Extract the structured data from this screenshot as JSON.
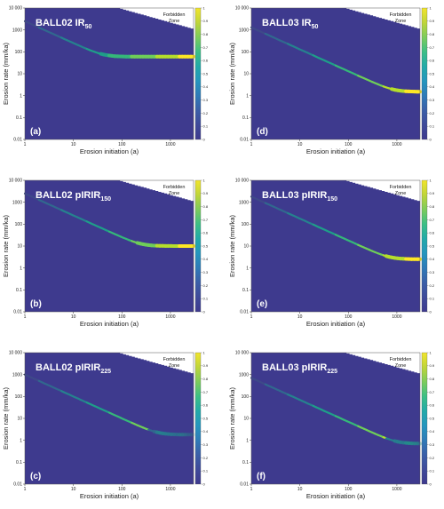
{
  "figure": {
    "xlabel": "Erosion initiation (a)",
    "ylabel": "Erosion rate (mm/ka)",
    "forbidden_zone": [
      "Forbidden",
      "Zone"
    ]
  },
  "colors": {
    "background": "#3e3a8e",
    "colormap": "viridis",
    "forbidden": "#ffffff"
  },
  "chart_data": [
    {
      "type": "heatmap",
      "panel": "(a)",
      "title_main": "BALL02 IR",
      "title_sub": "50",
      "x_scale": "log",
      "y_scale": "log",
      "xlim": [
        1,
        3000
      ],
      "ylim": [
        0.01,
        10000
      ],
      "x_ticks": [
        "1",
        "10",
        "100",
        "1000"
      ],
      "y_ticks": [
        "0.01",
        "0.1",
        "1",
        "10",
        "100",
        "1000",
        "10 000"
      ],
      "colorbar_ticks": [
        "0",
        "0.1",
        "0.2",
        "0.3",
        "0.4",
        "0.5",
        "0.6",
        "0.7",
        "0.8",
        "0.9",
        "1"
      ],
      "ridge": {
        "start_rate": 2500,
        "slope": -1,
        "plateau_rate": 60,
        "dashed_until": 25,
        "fade": false
      }
    },
    {
      "type": "heatmap",
      "panel": "(d)",
      "title_main": "BALL03 IR",
      "title_sub": "50",
      "x_scale": "log",
      "y_scale": "log",
      "xlim": [
        1,
        3000
      ],
      "ylim": [
        0.01,
        10000
      ],
      "x_ticks": [
        "1",
        "10",
        "100",
        "1000"
      ],
      "y_ticks": [
        "0.01",
        "0.1",
        "1",
        "10",
        "100",
        "1000",
        "10 000"
      ],
      "colorbar_ticks": [
        "0",
        "0.1",
        "0.2",
        "0.3",
        "0.4",
        "0.5",
        "0.6",
        "0.7",
        "0.8",
        "0.9",
        "1"
      ],
      "ridge": {
        "start_rate": 1300,
        "slope": -1,
        "plateau_rate": 1.5,
        "dashed_until": 1,
        "fade": false
      }
    },
    {
      "type": "heatmap",
      "panel": "(b)",
      "title_main": "BALL02 pIRIR",
      "title_sub": "150",
      "x_scale": "log",
      "y_scale": "log",
      "xlim": [
        1,
        3000
      ],
      "ylim": [
        0.01,
        10000
      ],
      "x_ticks": [
        "1",
        "10",
        "100",
        "1000"
      ],
      "y_ticks": [
        "0.01",
        "0.1",
        "1",
        "10",
        "100",
        "1000",
        "10 000"
      ],
      "colorbar_ticks": [
        "0",
        "0.1",
        "0.2",
        "0.3",
        "0.4",
        "0.5",
        "0.6",
        "0.7",
        "0.8",
        "0.9",
        "1"
      ],
      "ridge": {
        "start_rate": 2500,
        "slope": -1,
        "plateau_rate": 10,
        "dashed_until": 60,
        "fade": false
      }
    },
    {
      "type": "heatmap",
      "panel": "(e)",
      "title_main": "BALL03 pIRIR",
      "title_sub": "150",
      "x_scale": "log",
      "y_scale": "log",
      "xlim": [
        1,
        3000
      ],
      "ylim": [
        0.01,
        10000
      ],
      "x_ticks": [
        "1",
        "10",
        "100",
        "1000"
      ],
      "y_ticks": [
        "0.01",
        "0.1",
        "1",
        "10",
        "100",
        "1000",
        "10 000"
      ],
      "colorbar_ticks": [
        "0",
        "0.1",
        "0.2",
        "0.3",
        "0.4",
        "0.5",
        "0.6",
        "0.7",
        "0.8",
        "0.9",
        "1"
      ],
      "ridge": {
        "start_rate": 1800,
        "slope": -1,
        "plateau_rate": 2.5,
        "dashed_until": 40,
        "fade": false
      }
    },
    {
      "type": "heatmap",
      "panel": "(c)",
      "title_main": "BALL02 pIRIR",
      "title_sub": "225",
      "x_scale": "log",
      "y_scale": "log",
      "xlim": [
        1,
        3000
      ],
      "ylim": [
        0.01,
        10000
      ],
      "x_ticks": [
        "1",
        "10",
        "100",
        "1000"
      ],
      "y_ticks": [
        "0.01",
        "0.1",
        "1",
        "10",
        "100",
        "1000",
        "10 000"
      ],
      "colorbar_ticks": [
        "0",
        "0.1",
        "0.2",
        "0.3",
        "0.4",
        "0.5",
        "0.6",
        "0.7",
        "0.8",
        "0.9",
        "1"
      ],
      "ridge": {
        "start_rate": 1000,
        "slope": -1,
        "plateau_rate": 1.8,
        "dashed_until": 80,
        "fade": true
      }
    },
    {
      "type": "heatmap",
      "panel": "(f)",
      "title_main": "BALL03 pIRIR",
      "title_sub": "225",
      "x_scale": "log",
      "y_scale": "log",
      "xlim": [
        1,
        3000
      ],
      "ylim": [
        0.01,
        10000
      ],
      "x_ticks": [
        "1",
        "10",
        "100",
        "1000"
      ],
      "y_ticks": [
        "0.01",
        "0.1",
        "1",
        "10",
        "100",
        "1000",
        "10 000"
      ],
      "colorbar_ticks": [
        "0",
        "0.1",
        "0.2",
        "0.3",
        "0.4",
        "0.5",
        "0.6",
        "0.7",
        "0.8",
        "0.9",
        "1"
      ],
      "ridge": {
        "start_rate": 700,
        "slope": -1,
        "plateau_rate": 0.7,
        "dashed_until": 1,
        "fade": true
      }
    }
  ]
}
